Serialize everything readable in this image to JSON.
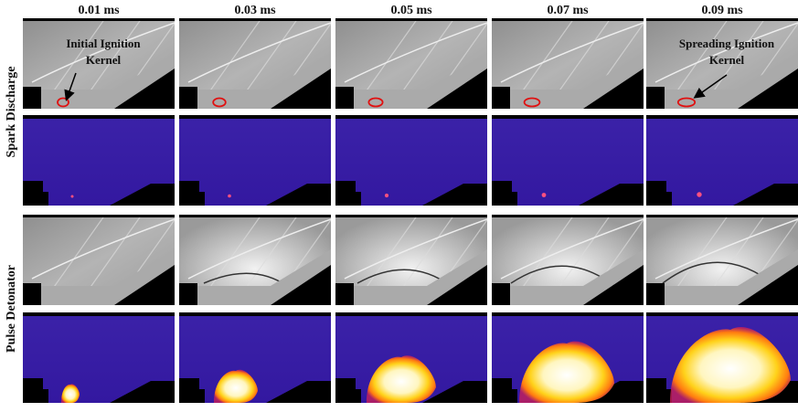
{
  "columns": [
    "0.01 ms",
    "0.03 ms",
    "0.05 ms",
    "0.07 ms",
    "0.09 ms"
  ],
  "rows": [
    {
      "label": "Spark Discharge"
    },
    {
      "label": "Pulse Detonator"
    }
  ],
  "annotations": [
    {
      "lines": [
        "Initial Ignition",
        "Kernel"
      ]
    },
    {
      "lines": [
        "Spreading Ignition",
        "Kernel"
      ]
    }
  ]
}
